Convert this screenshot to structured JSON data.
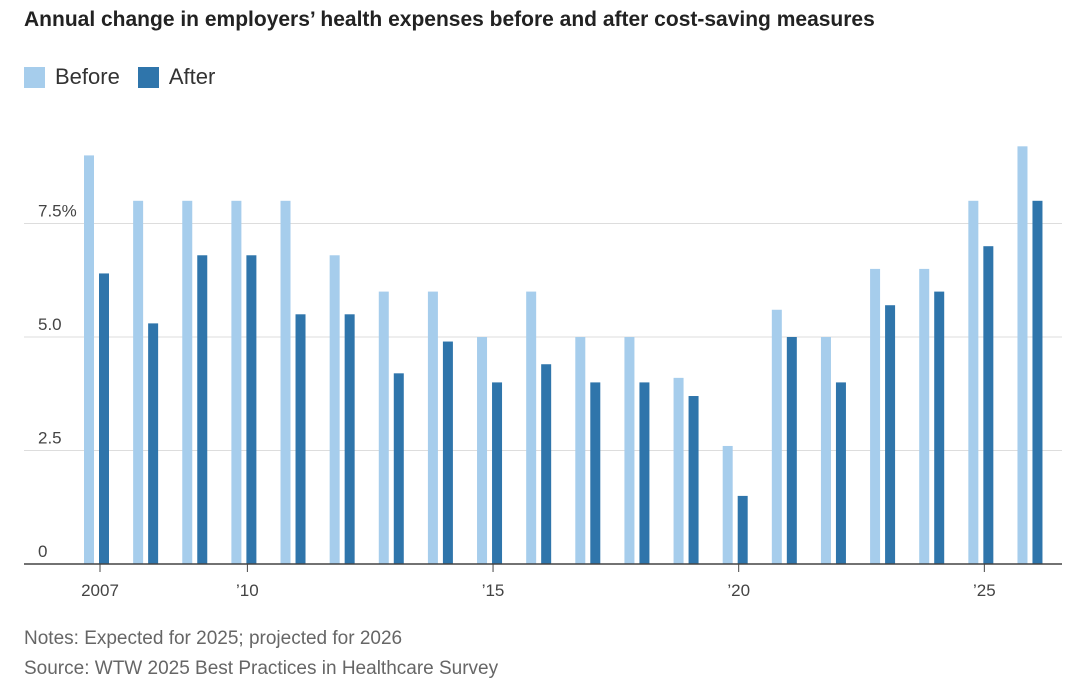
{
  "chart_data": {
    "type": "bar",
    "title": "Annual change in employers’ health expenses before and after cost-saving measures",
    "xlabel": "",
    "ylabel": "",
    "ylim": [
      0,
      10
    ],
    "y_ticks": [
      {
        "value": 0,
        "label": "0"
      },
      {
        "value": 2.5,
        "label": "2.5"
      },
      {
        "value": 5,
        "label": "5.0"
      },
      {
        "value": 7.5,
        "label": "7.5%"
      }
    ],
    "categories": [
      "2007",
      "2008",
      "2009",
      "2010",
      "2011",
      "2012",
      "2013",
      "2014",
      "2015",
      "2016",
      "2017",
      "2018",
      "2019",
      "2020",
      "2021",
      "2022",
      "2023",
      "2024",
      "2025",
      "2026"
    ],
    "x_tick_labels": [
      {
        "category": "2007",
        "label": "2007"
      },
      {
        "category": "2010",
        "label": "’10"
      },
      {
        "category": "2015",
        "label": "’15"
      },
      {
        "category": "2020",
        "label": "’20"
      },
      {
        "category": "2025",
        "label": "’25"
      }
    ],
    "series": [
      {
        "name": "Before",
        "color": "#a6cdec",
        "values": [
          9.0,
          8.0,
          8.0,
          8.0,
          8.0,
          6.8,
          6.0,
          6.0,
          5.0,
          6.0,
          5.0,
          5.0,
          4.1,
          2.6,
          5.6,
          5.0,
          6.5,
          6.5,
          8.0,
          9.2
        ]
      },
      {
        "name": "After",
        "color": "#2f75ab",
        "values": [
          6.4,
          5.3,
          6.8,
          6.8,
          5.5,
          5.5,
          4.2,
          4.9,
          4.0,
          4.4,
          4.0,
          4.0,
          3.7,
          1.5,
          5.0,
          4.0,
          5.7,
          6.0,
          7.0,
          8.0
        ]
      }
    ],
    "grid": true,
    "legend_position": "top-left"
  },
  "notes": {
    "line1": "Notes: Expected for 2025; projected for 2026",
    "line2": "Source: WTW 2025 Best Practices in Healthcare Survey"
  }
}
